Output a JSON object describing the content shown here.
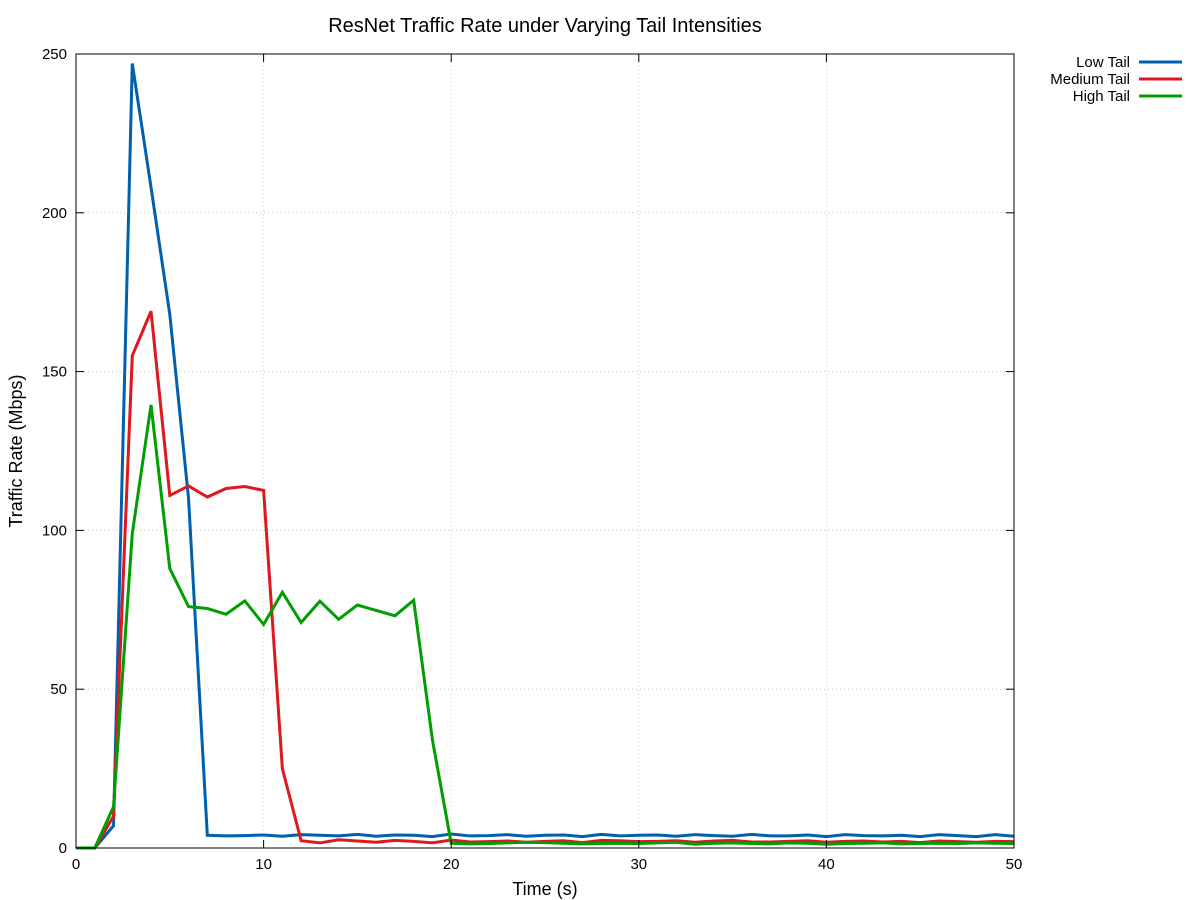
{
  "chart_data": {
    "type": "line",
    "title": "ResNet Traffic Rate under Varying Tail Intensities",
    "xlabel": "Time (s)",
    "ylabel": "Traffic Rate (Mbps)",
    "xlim": [
      0,
      50
    ],
    "ylim": [
      0,
      250
    ],
    "xticks": [
      0,
      10,
      20,
      30,
      40,
      50
    ],
    "yticks": [
      0,
      50,
      100,
      150,
      200,
      250
    ],
    "grid": true,
    "legend_position": "outside-top-right",
    "x": [
      0,
      1,
      2,
      3,
      4,
      5,
      6,
      7,
      8,
      9,
      10,
      11,
      12,
      13,
      14,
      15,
      16,
      17,
      18,
      19,
      20,
      21,
      22,
      23,
      24,
      25,
      26,
      27,
      28,
      29,
      30,
      31,
      32,
      33,
      34,
      35,
      36,
      37,
      38,
      39,
      40,
      41,
      42,
      43,
      44,
      45,
      46,
      47,
      48,
      49,
      50
    ],
    "series": [
      {
        "name": "Low Tail",
        "color": "#0060ad",
        "values": [
          0,
          0,
          7,
          247,
          208,
          168,
          110,
          4,
          3.8,
          3.9,
          4.1,
          3.7,
          4.2,
          4,
          3.8,
          4.3,
          3.7,
          4.1,
          4,
          3.6,
          4.4,
          3.8,
          3.9,
          4.2,
          3.7,
          4,
          4.1,
          3.6,
          4.3,
          3.8,
          4,
          4.1,
          3.7,
          4.2,
          3.9,
          3.7,
          4.3,
          3.8,
          3.8,
          4.1,
          3.6,
          4.2,
          3.9,
          3.8,
          4,
          3.6,
          4.2,
          3.9,
          3.6,
          4.2,
          3.7
        ]
      },
      {
        "name": "Medium Tail",
        "color": "#dd181f",
        "values": [
          0,
          0,
          10,
          155,
          169,
          111,
          114,
          110.5,
          113.2,
          113.8,
          112.6,
          25,
          2.3,
          1.6,
          2.6,
          2.2,
          1.8,
          2.4,
          2.1,
          1.6,
          2.5,
          1.9,
          2,
          2.2,
          1.8,
          2.1,
          2.3,
          1.7,
          2.4,
          2.3,
          2,
          2.1,
          2.3,
          1.8,
          2.2,
          2.4,
          1.9,
          1.9,
          2.1,
          2.3,
          1.8,
          2.1,
          2.2,
          1.9,
          2.1,
          1.7,
          2.2,
          2,
          1.8,
          2.1,
          2
        ]
      },
      {
        "name": "High Tail",
        "color": "#009e00",
        "values": [
          0,
          0,
          13,
          99,
          139.5,
          88,
          76,
          75.4,
          73.6,
          77.8,
          70.4,
          80.5,
          71,
          77.7,
          72,
          76.5,
          74.8,
          73.1,
          78,
          34,
          1.5,
          1.3,
          1.4,
          1.6,
          1.8,
          1.7,
          1.5,
          1.3,
          1.4,
          1.5,
          1.4,
          1.6,
          1.8,
          1.2,
          1.5,
          1.6,
          1.4,
          1.3,
          1.6,
          1.5,
          1.2,
          1.4,
          1.5,
          1.6,
          1.3,
          1.4,
          1.5,
          1.4,
          1.6,
          1.5,
          1.4
        ]
      }
    ]
  }
}
